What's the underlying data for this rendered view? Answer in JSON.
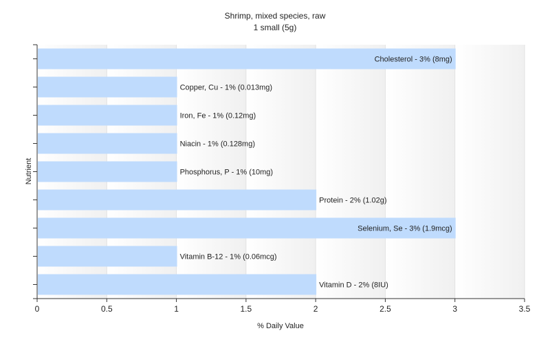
{
  "chart_data": {
    "type": "bar",
    "orientation": "horizontal",
    "title": "Shrimp, mixed species, raw",
    "subtitle": "1 small (5g)",
    "xlabel": "% Daily Value",
    "ylabel": "Nutrient",
    "xlim": [
      0,
      3.5
    ],
    "xticks": [
      "0",
      "0.5",
      "1",
      "1.5",
      "2",
      "2.5",
      "3",
      "3.5"
    ],
    "grid": "vertical",
    "bar_color": "#bfdbfd",
    "categories": [
      "Cholesterol",
      "Copper, Cu",
      "Iron, Fe",
      "Niacin",
      "Phosphorus, P",
      "Protein",
      "Selenium, Se",
      "Vitamin B-12",
      "Vitamin D"
    ],
    "values": [
      3,
      1,
      1,
      1,
      1,
      2,
      3,
      1,
      2
    ],
    "labels": [
      "Cholesterol - 3% (8mg)",
      "Copper, Cu - 1% (0.013mg)",
      "Iron, Fe - 1% (0.12mg)",
      "Niacin - 1% (0.128mg)",
      "Phosphorus, P - 1% (10mg)",
      "Protein - 2% (1.02g)",
      "Selenium, Se - 3% (1.9mcg)",
      "Vitamin B-12 - 1% (0.06mcg)",
      "Vitamin D - 2% (8IU)"
    ]
  }
}
